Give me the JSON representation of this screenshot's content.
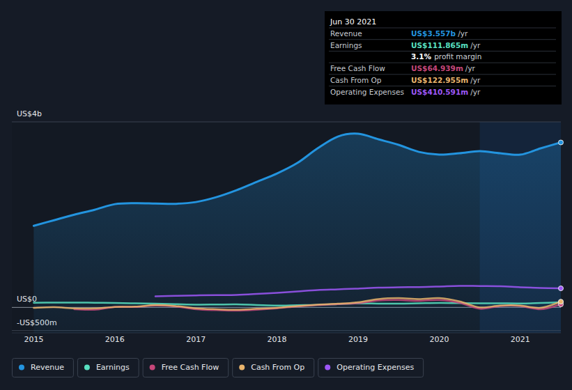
{
  "chart_data": {
    "type": "line",
    "x": [
      2015.0,
      2015.25,
      2015.5,
      2015.75,
      2016.0,
      2016.25,
      2016.5,
      2016.75,
      2017.0,
      2017.25,
      2017.5,
      2017.75,
      2018.0,
      2018.25,
      2018.5,
      2018.75,
      2019.0,
      2019.25,
      2019.5,
      2019.75,
      2020.0,
      2020.25,
      2020.5,
      2020.75,
      2021.0,
      2021.25,
      2021.5
    ],
    "series": [
      {
        "name": "Revenue",
        "color": "#2394df",
        "type": "area",
        "values": [
          1759,
          1880,
          2000,
          2105,
          2226,
          2248,
          2241,
          2233,
          2271,
          2376,
          2526,
          2707,
          2887,
          3113,
          3429,
          3684,
          3744,
          3624,
          3504,
          3353,
          3293,
          3323,
          3368,
          3323,
          3293,
          3429,
          3557
        ]
      },
      {
        "name": "Earnings",
        "color": "#58e0c1",
        "values": [
          100,
          103,
          105,
          100,
          95,
          88,
          80,
          70,
          60,
          62,
          65,
          52,
          40,
          48,
          55,
          70,
          85,
          82,
          80,
          88,
          95,
          92,
          90,
          88,
          85,
          95,
          111.865
        ]
      },
      {
        "name": "Free Cash Flow",
        "color": "#c6477a",
        "values": [
          null,
          null,
          -40,
          -50,
          10,
          10,
          40,
          20,
          -40,
          -60,
          -70,
          -50,
          -20,
          20,
          50,
          70,
          90,
          150,
          160,
          140,
          160,
          100,
          -30,
          30,
          30,
          -40,
          64.939
        ]
      },
      {
        "name": "Cash From Op",
        "color": "#e9b46c",
        "values": [
          -10,
          5,
          -20,
          -20,
          10,
          15,
          50,
          30,
          -20,
          -40,
          -50,
          -30,
          -10,
          30,
          60,
          80,
          110,
          180,
          200,
          180,
          200,
          130,
          0,
          40,
          40,
          -10,
          122.955
        ]
      },
      {
        "name": "Operating Expenses",
        "color": "#9d57f7",
        "values": [
          null,
          null,
          null,
          null,
          null,
          null,
          240,
          250,
          258,
          265,
          270,
          290,
          315,
          345,
          375,
          390,
          405,
          425,
          435,
          438,
          450,
          465,
          460,
          455,
          435,
          420,
          410.591
        ]
      }
    ],
    "xlim": [
      2014.73,
      2021.5
    ],
    "xticks": [
      2015,
      2016,
      2017,
      2018,
      2019,
      2020,
      2021
    ],
    "ylim": [
      -550,
      4000
    ],
    "yticks": [
      {
        "value": 4000,
        "label": "US$4b"
      },
      {
        "value": 0,
        "label": "US$0"
      },
      {
        "value": -500,
        "label": "-US$500m"
      }
    ],
    "grid": true,
    "legend": "bottom",
    "tooltip": {
      "date": "Jun 30 2021",
      "rows": [
        {
          "label": "Revenue",
          "value": "US$3.557b",
          "unit": "/yr"
        },
        {
          "label": "Earnings",
          "value": "US$111.865m",
          "unit": "/yr"
        },
        {
          "label": "Free Cash Flow",
          "value": "US$64.939m",
          "unit": "/yr"
        },
        {
          "label": "Cash From Op",
          "value": "US$122.955m",
          "unit": "/yr"
        },
        {
          "label": "Operating Expenses",
          "value": "US$410.591m",
          "unit": "/yr"
        }
      ],
      "profit_margin": {
        "value": "3.1%",
        "label": "profit margin"
      }
    }
  }
}
